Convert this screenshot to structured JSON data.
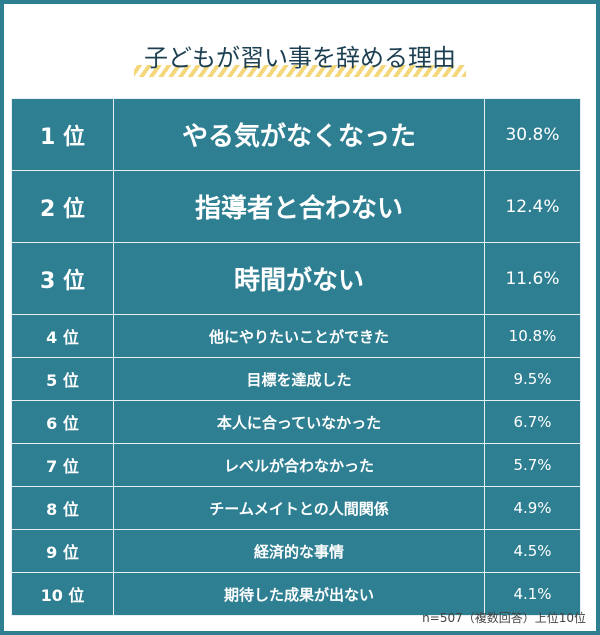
{
  "title": "子どもが習い事を辞める理由",
  "rows": [
    {
      "rank": "1 位",
      "reason": "やる気がなくなった",
      "percent": "30.8%"
    },
    {
      "rank": "2 位",
      "reason": "指導者と合わない",
      "percent": "12.4%"
    },
    {
      "rank": "3 位",
      "reason": "時間がない",
      "percent": "11.6%"
    },
    {
      "rank": "4 位",
      "reason": "他にやりたいことができた",
      "percent": "10.8%"
    },
    {
      "rank": "5 位",
      "reason": "目標を達成した",
      "percent": "9.5%"
    },
    {
      "rank": "6 位",
      "reason": "本人に合っていなかった",
      "percent": "6.7%"
    },
    {
      "rank": "7 位",
      "reason": "レベルが合わなかった",
      "percent": "5.7%"
    },
    {
      "rank": "8 位",
      "reason": "チームメイトとの人間関係",
      "percent": "4.9%"
    },
    {
      "rank": "9 位",
      "reason": "経済的な事情",
      "percent": "4.5%"
    },
    {
      "rank": "10 位",
      "reason": "期待した成果が出ない",
      "percent": "4.1%"
    }
  ],
  "note": "n=507（複数回答）上位10位",
  "colors": {
    "accent": "#2f7f92",
    "title": "#1d3f52",
    "highlight": "#f3d77a"
  }
}
